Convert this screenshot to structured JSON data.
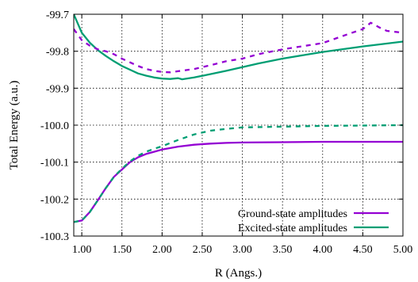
{
  "chart_data": {
    "type": "line",
    "title": "",
    "xlabel": "R (Angs.)",
    "ylabel": "Total Energy (a.u.)",
    "xlim": [
      0.9,
      5.0
    ],
    "ylim": [
      -100.3,
      -99.7
    ],
    "grid": true,
    "legend_position": "bottom-right",
    "x_ticks": [
      "1.00",
      "1.50",
      "2.00",
      "2.50",
      "3.00",
      "3.50",
      "4.00",
      "4.50",
      "5.00"
    ],
    "x_tick_values": [
      1.0,
      1.5,
      2.0,
      2.5,
      3.0,
      3.5,
      4.0,
      4.5,
      5.0
    ],
    "y_ticks": [
      "-99.7",
      "-99.8",
      "-99.9",
      "-100.0",
      "-100.1",
      "-100.2",
      "-100.3"
    ],
    "y_tick_values": [
      -99.7,
      -99.8,
      -99.9,
      -100.0,
      -100.1,
      -100.2,
      -100.3
    ],
    "legend": [
      {
        "label": "Ground-state amplitudes",
        "color": "#9400D3"
      },
      {
        "label": "Excited-state amplitudes",
        "color": "#009E73"
      }
    ],
    "series": [
      {
        "color": "#9400D3",
        "style": "solid",
        "points": [
          [
            0.9,
            -100.262
          ],
          [
            1.0,
            -100.258
          ],
          [
            1.1,
            -100.235
          ],
          [
            1.2,
            -100.203
          ],
          [
            1.3,
            -100.17
          ],
          [
            1.4,
            -100.14
          ],
          [
            1.5,
            -100.12
          ],
          [
            1.6,
            -100.1
          ],
          [
            1.7,
            -100.087
          ],
          [
            1.8,
            -100.078
          ],
          [
            1.9,
            -100.072
          ],
          [
            2.0,
            -100.066
          ],
          [
            2.2,
            -100.058
          ],
          [
            2.4,
            -100.053
          ],
          [
            2.6,
            -100.05
          ],
          [
            2.8,
            -100.048
          ],
          [
            3.0,
            -100.047
          ],
          [
            3.5,
            -100.046
          ],
          [
            4.0,
            -100.045
          ],
          [
            4.5,
            -100.045
          ],
          [
            5.0,
            -100.045
          ]
        ]
      },
      {
        "color": "#009E73",
        "style": "solid",
        "points": [
          [
            0.9,
            -99.7
          ],
          [
            1.0,
            -99.75
          ],
          [
            1.1,
            -99.777
          ],
          [
            1.2,
            -99.797
          ],
          [
            1.3,
            -99.813
          ],
          [
            1.4,
            -99.827
          ],
          [
            1.5,
            -99.84
          ],
          [
            1.6,
            -99.85
          ],
          [
            1.7,
            -99.86
          ],
          [
            1.8,
            -99.866
          ],
          [
            1.9,
            -99.871
          ],
          [
            2.0,
            -99.874
          ],
          [
            2.1,
            -99.875
          ],
          [
            2.2,
            -99.873
          ],
          [
            2.25,
            -99.876
          ],
          [
            2.4,
            -99.871
          ],
          [
            2.6,
            -99.862
          ],
          [
            2.8,
            -99.853
          ],
          [
            3.0,
            -99.843
          ],
          [
            3.2,
            -99.833
          ],
          [
            3.5,
            -99.82
          ],
          [
            4.0,
            -99.802
          ],
          [
            4.5,
            -99.787
          ],
          [
            5.0,
            -99.774
          ]
        ]
      },
      {
        "color": "#9400D3",
        "style": "dashed",
        "points": [
          [
            0.9,
            -99.74
          ],
          [
            1.0,
            -99.77
          ],
          [
            1.1,
            -99.785
          ],
          [
            1.2,
            -99.795
          ],
          [
            1.3,
            -99.8
          ],
          [
            1.4,
            -99.808
          ],
          [
            1.5,
            -99.82
          ],
          [
            1.6,
            -99.83
          ],
          [
            1.7,
            -99.84
          ],
          [
            1.8,
            -99.848
          ],
          [
            1.9,
            -99.853
          ],
          [
            2.0,
            -99.856
          ],
          [
            2.1,
            -99.857
          ],
          [
            2.2,
            -99.854
          ],
          [
            2.4,
            -99.848
          ],
          [
            2.6,
            -99.838
          ],
          [
            2.8,
            -99.827
          ],
          [
            3.0,
            -99.82
          ],
          [
            3.2,
            -99.808
          ],
          [
            3.5,
            -99.795
          ],
          [
            4.0,
            -99.778
          ],
          [
            4.3,
            -99.755
          ],
          [
            4.5,
            -99.74
          ],
          [
            4.6,
            -99.723
          ],
          [
            4.7,
            -99.735
          ],
          [
            4.8,
            -99.745
          ],
          [
            5.0,
            -99.75
          ]
        ]
      },
      {
        "color": "#009E73",
        "style": "dashed",
        "points": [
          [
            0.9,
            -100.262
          ],
          [
            1.0,
            -100.258
          ],
          [
            1.1,
            -100.235
          ],
          [
            1.2,
            -100.203
          ],
          [
            1.3,
            -100.17
          ],
          [
            1.4,
            -100.14
          ],
          [
            1.5,
            -100.118
          ],
          [
            1.6,
            -100.098
          ],
          [
            1.7,
            -100.083
          ],
          [
            1.8,
            -100.072
          ],
          [
            1.9,
            -100.064
          ],
          [
            2.0,
            -100.057
          ],
          [
            2.2,
            -100.04
          ],
          [
            2.4,
            -100.025
          ],
          [
            2.6,
            -100.015
          ],
          [
            2.8,
            -100.01
          ],
          [
            3.0,
            -100.006
          ],
          [
            3.5,
            -100.004
          ],
          [
            4.0,
            -100.002
          ],
          [
            4.5,
            -100.001
          ],
          [
            5.0,
            -100.0
          ]
        ]
      }
    ]
  }
}
